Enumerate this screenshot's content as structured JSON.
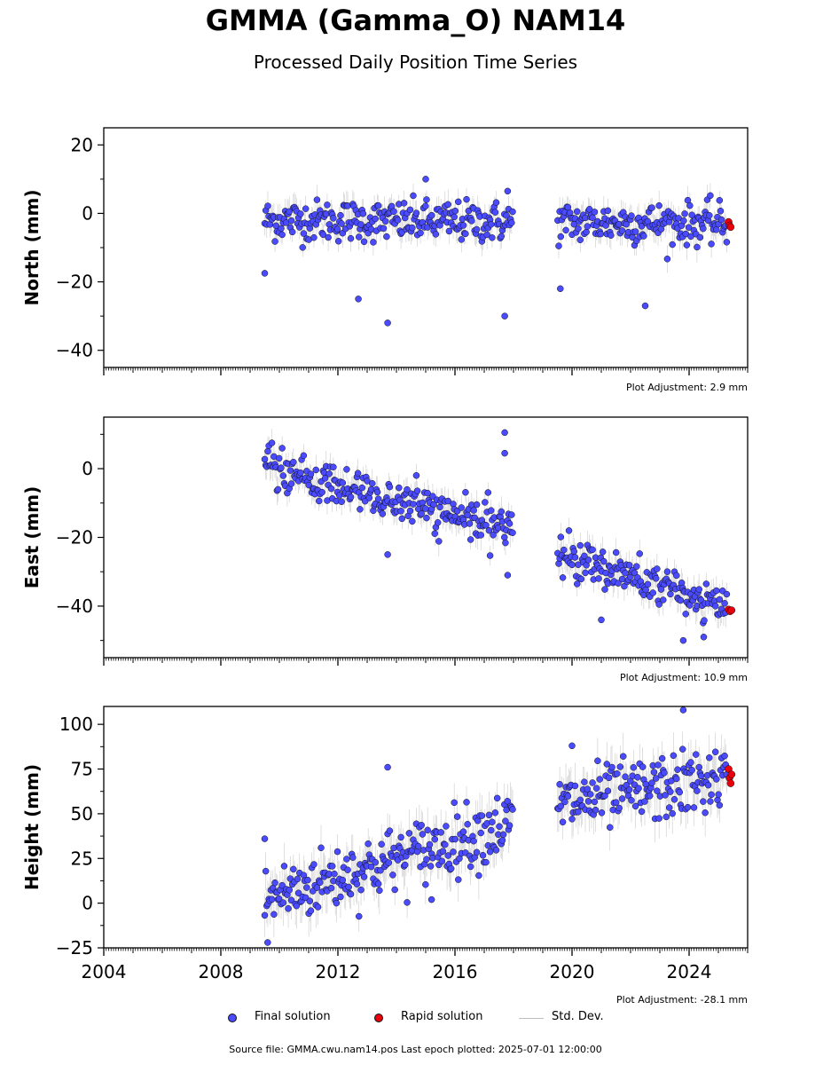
{
  "title": "GMMA (Gamma_O) NAM14",
  "subtitle": "Processed Daily Position Time Series",
  "source_text": "Source file: GMMA.cwu.nam14.pos  Last epoch plotted: 2025-07-01 12:00:00",
  "legend": {
    "final": "Final solution",
    "rapid": "Rapid solution",
    "stddev": "Std. Dev."
  },
  "colors": {
    "final": "#4a4aff",
    "rapid": "#e8000b",
    "stddev": "#9e9e9e"
  },
  "chart_data": [
    {
      "type": "scatter",
      "ylabel": "North (mm)",
      "adjustment": "Plot Adjustment: 2.9 mm",
      "xlim": [
        2004,
        2026
      ],
      "ylim": [
        -45,
        25
      ],
      "yticks": [
        -40,
        -20,
        0,
        20
      ],
      "xticks": [
        2004,
        2008,
        2012,
        2016,
        2020,
        2024
      ],
      "data_span": [
        2009.5,
        2025.5
      ],
      "gap": [
        2018.0,
        2019.5
      ],
      "series": [
        {
          "name": "Final solution",
          "trend": [
            [
              2009.5,
              -2
            ],
            [
              2025.3,
              -3
            ]
          ],
          "approx_scatter_mm": 3,
          "outliers": [
            [
              2009.5,
              -17.5
            ],
            [
              2012.7,
              -25
            ],
            [
              2013.7,
              -32
            ],
            [
              2015.0,
              10
            ],
            [
              2017.7,
              -30
            ],
            [
              2019.6,
              -22
            ],
            [
              2022.5,
              -27
            ],
            [
              2017.8,
              6.5
            ]
          ]
        },
        {
          "name": "Rapid solution",
          "points": [
            [
              2025.35,
              -2.5
            ],
            [
              2025.38,
              -3.5
            ],
            [
              2025.42,
              -4.0
            ]
          ]
        }
      ]
    },
    {
      "type": "scatter",
      "ylabel": "East (mm)",
      "adjustment": "Plot Adjustment: 10.9 mm",
      "xlim": [
        2004,
        2026
      ],
      "ylim": [
        -55,
        15
      ],
      "yticks": [
        -40,
        -20,
        0
      ],
      "xticks": [
        2004,
        2008,
        2012,
        2016,
        2020,
        2024
      ],
      "data_span": [
        2009.5,
        2025.5
      ],
      "gap": [
        2018.0,
        2019.5
      ],
      "series": [
        {
          "name": "Final solution",
          "trend": [
            [
              2009.5,
              0
            ],
            [
              2018.0,
              -18
            ],
            [
              2019.5,
              -24
            ],
            [
              2025.3,
              -41
            ]
          ],
          "approx_scatter_mm": 3,
          "outliers": [
            [
              2017.7,
              10.5
            ],
            [
              2017.7,
              4.5
            ],
            [
              2013.7,
              -25
            ],
            [
              2017.8,
              -31
            ],
            [
              2021.0,
              -44
            ],
            [
              2023.8,
              -50
            ],
            [
              2024.5,
              -49
            ]
          ]
        },
        {
          "name": "Rapid solution",
          "points": [
            [
              2025.35,
              -41.0
            ],
            [
              2025.4,
              -41.5
            ],
            [
              2025.45,
              -41.2
            ]
          ]
        }
      ]
    },
    {
      "type": "scatter",
      "ylabel": "Height (mm)",
      "adjustment": "Plot Adjustment: -28.1 mm",
      "xlim": [
        2004,
        2026
      ],
      "ylim": [
        -25,
        110
      ],
      "yticks": [
        -25,
        0,
        25,
        50,
        75,
        100
      ],
      "xticks": [
        2004,
        2008,
        2012,
        2016,
        2020,
        2024
      ],
      "xtick_labels": [
        "2004",
        "2008",
        "2012",
        "2016",
        "2020",
        "2024"
      ],
      "data_span": [
        2009.5,
        2025.5
      ],
      "gap": [
        2018.0,
        2019.5
      ],
      "series": [
        {
          "name": "Final solution",
          "trend": [
            [
              2009.5,
              2
            ],
            [
              2018.0,
              45
            ],
            [
              2019.5,
              55
            ],
            [
              2025.3,
              70
            ]
          ],
          "approx_scatter_mm": 9,
          "outliers": [
            [
              2009.6,
              -22
            ],
            [
              2013.7,
              76
            ],
            [
              2015.2,
              2
            ],
            [
              2023.8,
              108
            ],
            [
              2020.0,
              88
            ],
            [
              2009.5,
              36
            ]
          ]
        },
        {
          "name": "Rapid solution",
          "points": [
            [
              2025.35,
              75
            ],
            [
              2025.38,
              70
            ],
            [
              2025.42,
              67
            ],
            [
              2025.45,
              72
            ]
          ]
        }
      ]
    }
  ]
}
